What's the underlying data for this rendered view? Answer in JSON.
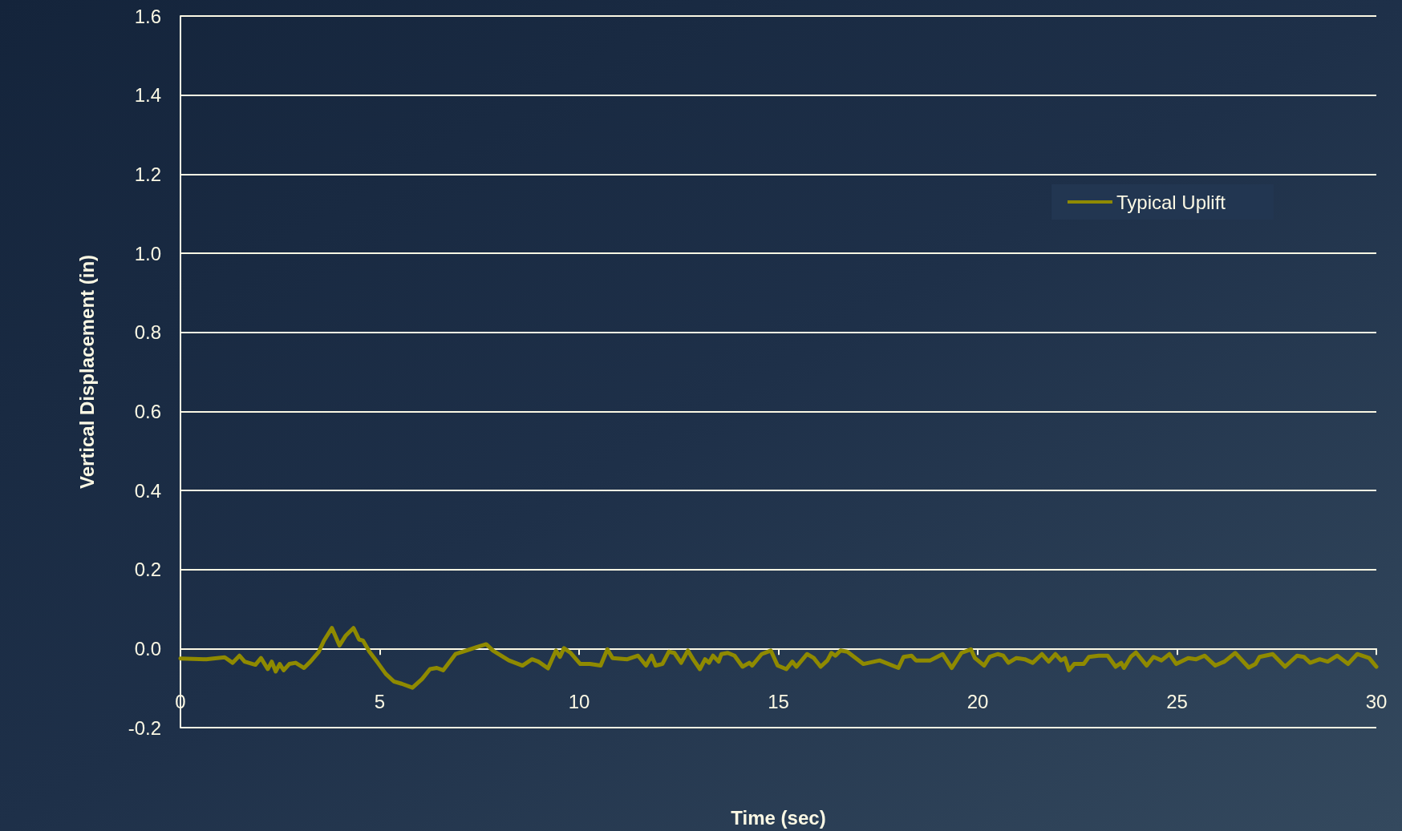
{
  "chart_data": {
    "type": "line",
    "xlabel": "Time (sec)",
    "ylabel": "Vertical Displacement (in)",
    "xlim": [
      0,
      30
    ],
    "xticks": [
      0,
      5,
      10,
      15,
      20,
      25,
      30
    ],
    "ylim": [
      -0.2,
      1.6
    ],
    "yticks": [
      {
        "value": -0.2,
        "label": "-0.2"
      },
      {
        "value": 0,
        "label": "0.0"
      },
      {
        "value": 0.2,
        "label": "0.2"
      },
      {
        "value": 0.4,
        "label": "0.4"
      },
      {
        "value": 0.6,
        "label": "0.6"
      },
      {
        "value": 0.8,
        "label": "0.8"
      },
      {
        "value": 1.0,
        "label": "1.0"
      },
      {
        "value": 1.2,
        "label": "1.2"
      },
      {
        "value": 1.4,
        "label": "1.4"
      },
      {
        "value": 1.6,
        "label": "1.6"
      }
    ],
    "grid": "y",
    "legend": "top right",
    "marker": "none",
    "line_style": "solid",
    "series": [
      {
        "name": "Typical Uplift",
        "color": "#8f8a00",
        "x": [
          0,
          0.64,
          1.11,
          1.31,
          1.48,
          1.61,
          1.88,
          2.02,
          2.19,
          2.29,
          2.39,
          2.49,
          2.59,
          2.73,
          2.89,
          3.1,
          3.26,
          3.47,
          3.6,
          3.8,
          3.99,
          4.14,
          4.34,
          4.48,
          4.58,
          4.74,
          4.95,
          5.15,
          5.35,
          5.55,
          5.82,
          6.06,
          6.26,
          6.43,
          6.59,
          6.9,
          7.17,
          7.44,
          7.67,
          7.84,
          8.24,
          8.58,
          8.82,
          8.98,
          9.22,
          9.42,
          9.52,
          9.62,
          9.79,
          10.03,
          10.27,
          10.54,
          10.71,
          10.84,
          11.21,
          11.48,
          11.68,
          11.82,
          11.92,
          12.09,
          12.25,
          12.39,
          12.56,
          12.73,
          12.86,
          13.03,
          13.16,
          13.26,
          13.36,
          13.5,
          13.57,
          13.73,
          13.9,
          14.1,
          14.27,
          14.34,
          14.58,
          14.81,
          14.98,
          15.2,
          15.35,
          15.45,
          15.72,
          15.89,
          16.06,
          16.23,
          16.33,
          16.43,
          16.56,
          16.73,
          17.13,
          17.54,
          18.01,
          18.14,
          18.34,
          18.45,
          18.81,
          19.12,
          19.35,
          19.59,
          19.83,
          19.93,
          20.16,
          20.3,
          20.5,
          20.64,
          20.77,
          20.97,
          21.18,
          21.38,
          21.61,
          21.78,
          21.95,
          22.09,
          22.19,
          22.29,
          22.42,
          22.66,
          22.79,
          23.03,
          23.26,
          23.46,
          23.6,
          23.67,
          23.84,
          23.97,
          24.24,
          24.41,
          24.61,
          24.81,
          24.98,
          25.28,
          25.48,
          25.69,
          25.96,
          26.19,
          26.46,
          26.8,
          26.97,
          27.07,
          27.4,
          27.71,
          28.01,
          28.18,
          28.34,
          28.58,
          28.78,
          29.02,
          29.29,
          29.52,
          29.82,
          30
        ],
        "values": [
          -0.025,
          -0.027,
          -0.022,
          -0.036,
          -0.018,
          -0.033,
          -0.041,
          -0.024,
          -0.052,
          -0.033,
          -0.058,
          -0.039,
          -0.055,
          -0.039,
          -0.036,
          -0.049,
          -0.033,
          -0.008,
          0.02,
          0.052,
          0.008,
          0.032,
          0.052,
          0.023,
          0.02,
          -0.008,
          -0.036,
          -0.064,
          -0.083,
          -0.089,
          -0.099,
          -0.077,
          -0.052,
          -0.049,
          -0.055,
          -0.014,
          -0.005,
          0.004,
          0.011,
          -0.005,
          -0.03,
          -0.043,
          -0.027,
          -0.033,
          -0.05,
          -0.005,
          -0.021,
          0.001,
          -0.011,
          -0.039,
          -0.039,
          -0.043,
          -0.002,
          -0.024,
          -0.027,
          -0.018,
          -0.043,
          -0.018,
          -0.043,
          -0.039,
          -0.008,
          -0.011,
          -0.036,
          -0.005,
          -0.027,
          -0.052,
          -0.027,
          -0.036,
          -0.018,
          -0.033,
          -0.014,
          -0.011,
          -0.018,
          -0.046,
          -0.036,
          -0.043,
          -0.014,
          -0.005,
          -0.043,
          -0.052,
          -0.033,
          -0.046,
          -0.014,
          -0.024,
          -0.046,
          -0.03,
          -0.011,
          -0.018,
          -0.005,
          -0.008,
          -0.039,
          -0.03,
          -0.049,
          -0.021,
          -0.018,
          -0.03,
          -0.03,
          -0.014,
          -0.049,
          -0.011,
          -0.002,
          -0.024,
          -0.043,
          -0.021,
          -0.014,
          -0.018,
          -0.036,
          -0.024,
          -0.027,
          -0.036,
          -0.014,
          -0.033,
          -0.014,
          -0.03,
          -0.024,
          -0.055,
          -0.039,
          -0.039,
          -0.021,
          -0.018,
          -0.018,
          -0.046,
          -0.036,
          -0.049,
          -0.021,
          -0.01,
          -0.043,
          -0.021,
          -0.03,
          -0.014,
          -0.039,
          -0.024,
          -0.027,
          -0.018,
          -0.043,
          -0.033,
          -0.011,
          -0.048,
          -0.039,
          -0.021,
          -0.014,
          -0.046,
          -0.018,
          -0.021,
          -0.036,
          -0.027,
          -0.033,
          -0.018,
          -0.039,
          -0.014,
          -0.024,
          -0.046
        ]
      }
    ]
  }
}
